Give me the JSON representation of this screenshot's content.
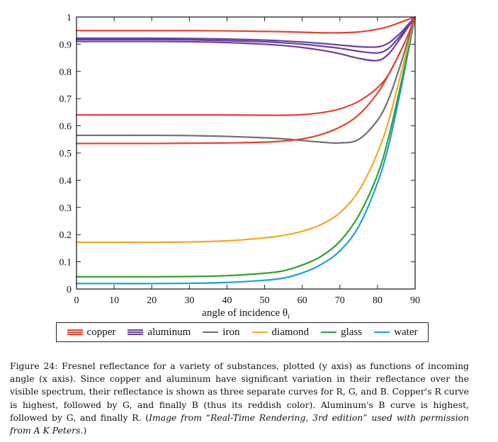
{
  "chart_data": {
    "type": "line",
    "title": "",
    "xlabel": "angle of incidence θ",
    "xlabel_subscript": "i",
    "ylabel": "",
    "xlim": [
      0,
      90
    ],
    "ylim": [
      0,
      1
    ],
    "xticks": [
      0,
      10,
      20,
      30,
      40,
      50,
      60,
      70,
      80,
      90
    ],
    "yticks": [
      0,
      0.1,
      0.2,
      0.3,
      0.4,
      0.5,
      0.6,
      0.7,
      0.8,
      0.9,
      1
    ],
    "ytick_labels": [
      "0",
      "0.1",
      "0.2",
      "0.3",
      "0.4",
      "0.5",
      "0.6",
      "0.7",
      "0.8",
      "0.9",
      "1"
    ],
    "grid": false,
    "legend_position": "bottom",
    "x": [
      0,
      10,
      20,
      30,
      40,
      50,
      55,
      60,
      65,
      70,
      75,
      80,
      83,
      86,
      88,
      90
    ],
    "series": [
      {
        "name": "copper R",
        "group": "copper",
        "color": "#e8412c",
        "values": [
          0.95,
          0.95,
          0.95,
          0.95,
          0.949,
          0.947,
          0.946,
          0.944,
          0.942,
          0.942,
          0.945,
          0.955,
          0.965,
          0.98,
          0.99,
          1.0
        ]
      },
      {
        "name": "copper G",
        "group": "copper",
        "color": "#e8412c",
        "values": [
          0.64,
          0.64,
          0.64,
          0.64,
          0.64,
          0.639,
          0.639,
          0.641,
          0.648,
          0.662,
          0.69,
          0.74,
          0.79,
          0.87,
          0.93,
          1.0
        ]
      },
      {
        "name": "copper B",
        "group": "copper",
        "color": "#e8412c",
        "values": [
          0.535,
          0.535,
          0.535,
          0.536,
          0.537,
          0.54,
          0.544,
          0.552,
          0.568,
          0.595,
          0.64,
          0.72,
          0.79,
          0.87,
          0.93,
          1.0
        ]
      },
      {
        "name": "aluminum B",
        "group": "aluminum",
        "color": "#6a3fa0",
        "values": [
          0.922,
          0.922,
          0.922,
          0.921,
          0.919,
          0.915,
          0.912,
          0.908,
          0.903,
          0.897,
          0.891,
          0.89,
          0.905,
          0.94,
          0.97,
          1.0
        ]
      },
      {
        "name": "aluminum G",
        "group": "aluminum",
        "color": "#6a3fa0",
        "values": [
          0.917,
          0.917,
          0.917,
          0.916,
          0.913,
          0.909,
          0.905,
          0.9,
          0.893,
          0.885,
          0.874,
          0.868,
          0.885,
          0.93,
          0.965,
          1.0
        ]
      },
      {
        "name": "aluminum R",
        "group": "aluminum",
        "color": "#6a3fa0",
        "values": [
          0.91,
          0.91,
          0.91,
          0.909,
          0.906,
          0.9,
          0.895,
          0.888,
          0.878,
          0.865,
          0.848,
          0.84,
          0.865,
          0.92,
          0.96,
          1.0
        ]
      },
      {
        "name": "iron",
        "group": "iron",
        "color": "#6d7072",
        "values": [
          0.565,
          0.565,
          0.565,
          0.564,
          0.561,
          0.556,
          0.552,
          0.546,
          0.54,
          0.537,
          0.55,
          0.62,
          0.7,
          0.82,
          0.91,
          1.0
        ]
      },
      {
        "name": "diamond",
        "group": "diamond",
        "color": "#f5a623",
        "values": [
          0.172,
          0.172,
          0.172,
          0.173,
          0.177,
          0.188,
          0.197,
          0.212,
          0.237,
          0.28,
          0.36,
          0.5,
          0.62,
          0.78,
          0.89,
          1.0
        ]
      },
      {
        "name": "glass",
        "group": "glass",
        "color": "#33a02c",
        "values": [
          0.045,
          0.045,
          0.045,
          0.046,
          0.049,
          0.058,
          0.067,
          0.088,
          0.12,
          0.175,
          0.27,
          0.42,
          0.56,
          0.74,
          0.87,
          1.0
        ]
      },
      {
        "name": "water",
        "group": "water",
        "color": "#1a9fdb",
        "values": [
          0.02,
          0.02,
          0.02,
          0.021,
          0.024,
          0.032,
          0.04,
          0.059,
          0.09,
          0.14,
          0.23,
          0.39,
          0.53,
          0.72,
          0.86,
          1.0
        ]
      }
    ]
  },
  "legend": {
    "items": [
      {
        "label": "copper",
        "color": "#e8412c",
        "lines": 3
      },
      {
        "label": "aluminum",
        "color": "#6a3fa0",
        "lines": 3
      },
      {
        "label": "iron",
        "color": "#6d7072",
        "lines": 1
      },
      {
        "label": "diamond",
        "color": "#f5a623",
        "lines": 1
      },
      {
        "label": "glass",
        "color": "#33a02c",
        "lines": 1
      },
      {
        "label": "water",
        "color": "#1a9fdb",
        "lines": 1
      }
    ]
  },
  "caption": {
    "label": "Figure 24:",
    "text": "Fresnel reflectance for a variety of substances, plotted (y axis) as functions of incoming angle (x axis). Since copper and aluminum have significant variation in their reflectance over the visible spectrum, their reflectance is shown as three separate curves for R, G, and B. Copper's R curve is highest, followed by G, and finally B (thus its reddish color). Aluminum's B curve is highest, followed by G, and finally R. (",
    "italic": "Image from “Real-Time Rendering, 3rd edition” used with permission from A K Peters.",
    "end": ")"
  }
}
